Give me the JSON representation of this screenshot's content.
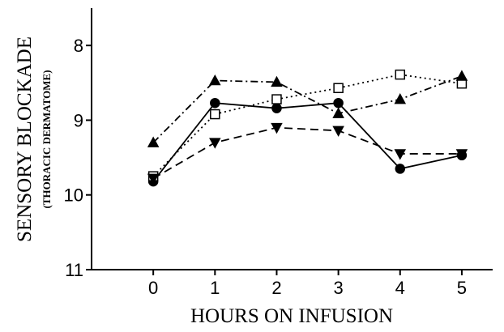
{
  "chart_data": {
    "type": "line",
    "xlabel": "HOURS ON INFUSION",
    "ylabel": "SENSORY BLOCKADE",
    "ylabel_sub": "(THORACIC DERMATOME)",
    "x": [
      0,
      1,
      2,
      3,
      4,
      5
    ],
    "xlim": [
      -1,
      5.5
    ],
    "xticks": [
      0,
      1,
      2,
      3,
      4,
      5
    ],
    "ylim": [
      7.5,
      11
    ],
    "yticks": [
      8,
      9,
      10,
      11
    ],
    "y_inverted": true,
    "grid": false,
    "series": [
      {
        "color": "#000000",
        "marker": "circle",
        "marker_fill": "#000000",
        "dash": "none",
        "values": [
          9.82,
          8.77,
          8.84,
          8.77,
          9.65,
          9.47
        ]
      },
      {
        "color": "#000000",
        "marker": "square",
        "marker_fill": "#ffffff",
        "dash": "2 4",
        "values": [
          9.75,
          8.92,
          8.72,
          8.57,
          8.39,
          8.51
        ]
      },
      {
        "color": "#000000",
        "marker": "triangle-up",
        "marker_fill": "#000000",
        "dash": "9 4 2 4",
        "values": [
          9.3,
          8.47,
          8.49,
          8.91,
          8.72,
          8.41
        ]
      },
      {
        "color": "#000000",
        "marker": "triangle-down",
        "marker_fill": "#000000",
        "dash": "10 6",
        "values": [
          9.78,
          9.3,
          9.1,
          9.14,
          9.45,
          9.45
        ]
      }
    ]
  }
}
